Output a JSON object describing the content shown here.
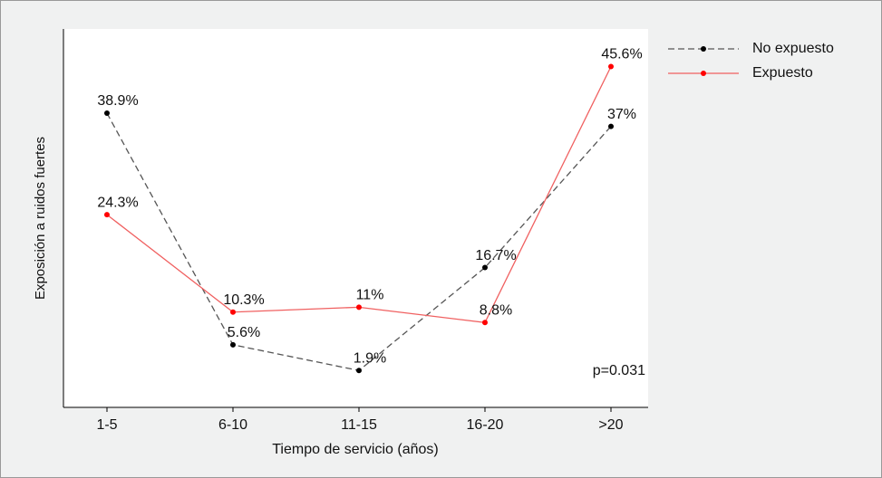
{
  "chart_data": {
    "type": "line",
    "x_label": "Tiempo de servicio (años)",
    "y_label": "Exposición a ruidos fuertes",
    "categories": [
      "1-5",
      "6-10",
      "11-15",
      "16-20",
      ">20"
    ],
    "series": [
      {
        "name": "No expuesto",
        "color": "#000000",
        "line_color": "#555555",
        "line_style": "dashed",
        "values": [
          38.9,
          5.6,
          1.9,
          16.7,
          37
        ],
        "value_labels": [
          "38.9%",
          "5.6%",
          "1.9%",
          "16.7%",
          "37%"
        ]
      },
      {
        "name": "Expuesto",
        "color": "#ff0000",
        "line_color": "#f06060",
        "line_style": "solid",
        "values": [
          24.3,
          10.3,
          11,
          8.8,
          45.6
        ],
        "value_labels": [
          "24.3%",
          "10.3%",
          "11%",
          "8.8%",
          "45.6%"
        ]
      }
    ],
    "ylim": [
      -3.4,
      51
    ],
    "annotation": "p=0.031",
    "legend": "outside-right"
  }
}
